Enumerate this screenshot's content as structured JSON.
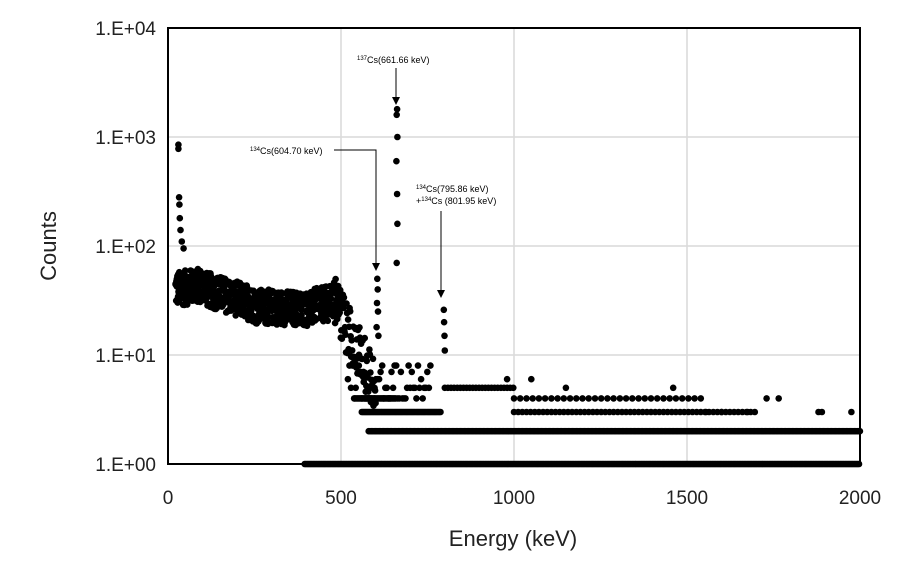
{
  "chart_data": {
    "type": "scatter",
    "title": "",
    "xlabel": "Energy (keV)",
    "ylabel": "Counts",
    "xlim": [
      0,
      2000
    ],
    "ylim": [
      1,
      10000
    ],
    "y_scale": "log",
    "grid": true,
    "legend": "none",
    "x_ticks": [
      "0",
      "500",
      "1000",
      "1500",
      "2000"
    ],
    "y_ticks": [
      "1.E+00",
      "1.E+01",
      "1.E+02",
      "1.E+03",
      "1.E+04"
    ],
    "marker_color": "#000000",
    "series": [
      {
        "name": "",
        "peaks": [
          {
            "x": 30,
            "y": 850
          },
          {
            "x": 30,
            "y": 780
          },
          {
            "x": 32,
            "y": 280
          },
          {
            "x": 33,
            "y": 240
          },
          {
            "x": 34,
            "y": 180
          },
          {
            "x": 36,
            "y": 140
          },
          {
            "x": 40,
            "y": 110
          },
          {
            "x": 45,
            "y": 95
          },
          {
            "x": 605,
            "y": 50
          },
          {
            "x": 606,
            "y": 40
          },
          {
            "x": 604,
            "y": 30
          },
          {
            "x": 607,
            "y": 25
          },
          {
            "x": 603,
            "y": 18
          },
          {
            "x": 608,
            "y": 15
          },
          {
            "x": 662,
            "y": 1800
          },
          {
            "x": 661,
            "y": 1600
          },
          {
            "x": 663,
            "y": 1000
          },
          {
            "x": 660,
            "y": 600
          },
          {
            "x": 662,
            "y": 300
          },
          {
            "x": 663,
            "y": 160
          },
          {
            "x": 661,
            "y": 70
          },
          {
            "x": 797,
            "y": 26
          },
          {
            "x": 798,
            "y": 20
          },
          {
            "x": 799,
            "y": 15
          },
          {
            "x": 800,
            "y": 11
          }
        ],
        "isolated": [
          {
            "x": 980,
            "y": 6
          },
          {
            "x": 1050,
            "y": 6
          },
          {
            "x": 1150,
            "y": 5
          },
          {
            "x": 1460,
            "y": 5
          },
          {
            "x": 1730,
            "y": 4
          },
          {
            "x": 1765,
            "y": 4
          },
          {
            "x": 1880,
            "y": 3
          },
          {
            "x": 1890,
            "y": 3
          },
          {
            "x": 1975,
            "y": 3
          },
          {
            "x": 1600,
            "y": 3
          },
          {
            "x": 1675,
            "y": 3
          },
          {
            "x": 1555,
            "y": 3
          }
        ]
      }
    ],
    "annotations": [
      {
        "iso": "137",
        "text": "Cs(661.66 keV)",
        "x": 662,
        "y": 1800
      },
      {
        "iso": "134",
        "text": "Cs(604.70 keV)",
        "x": 605,
        "y": 50
      },
      {
        "iso": "134",
        "text": "Cs(795.86 keV)",
        "iso2": "134",
        "text2": "Cs (801.95 keV)",
        "x": 797,
        "y": 26
      }
    ]
  }
}
